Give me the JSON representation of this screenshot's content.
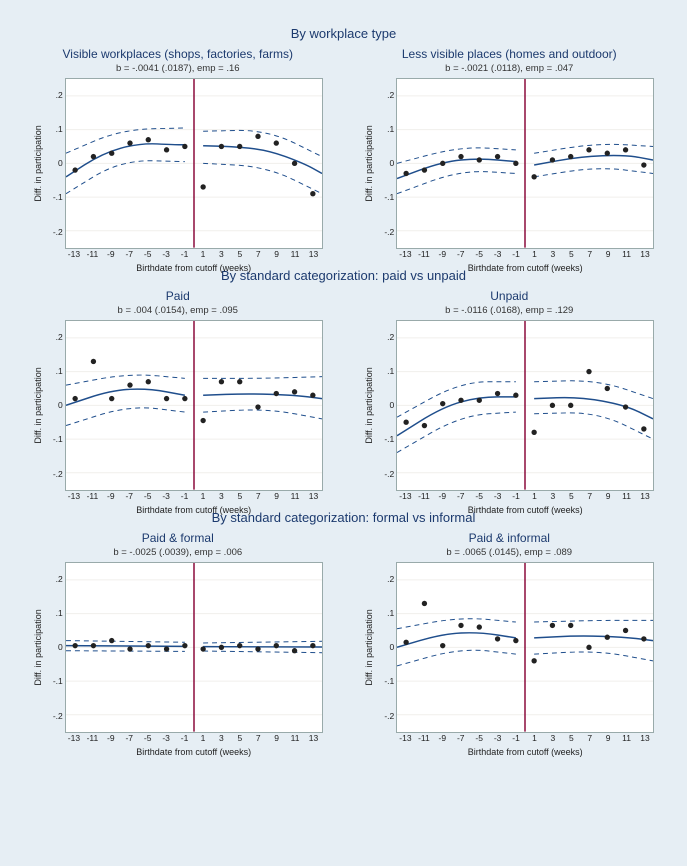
{
  "bg": "#e6eef4",
  "colors": {
    "line": "#1f4e8c",
    "cutoff": "#8b0a3b",
    "grid": "#f1efec",
    "bg_panel": "#ffffff",
    "border": "#99aaaa"
  },
  "xaxis": {
    "label": "Birthdate from cutoff (weeks)",
    "ticks": [
      -13,
      -11,
      -9,
      -7,
      -5,
      -3,
      -1,
      1,
      3,
      5,
      7,
      9,
      11,
      13
    ],
    "min": -14,
    "max": 14,
    "cutoff": 0
  },
  "yaxis": {
    "label_main": "Diff. in participation",
    "ticks": [
      -0.2,
      -0.1,
      0,
      0.1,
      0.2
    ],
    "min": -0.25,
    "max": 0.25
  },
  "point_radius": 2.7,
  "sections": [
    {
      "title": "By workplace type",
      "panels": [
        {
          "id": "visible",
          "title": "Visible workplaces (shops, factories, farms)",
          "sub": "b = -.0041 (.0187), emp = .16",
          "ylabel": "Diff. in participation",
          "points": [
            [
              -13,
              -0.02
            ],
            [
              -11,
              0.02
            ],
            [
              -9,
              0.03
            ],
            [
              -7,
              0.06
            ],
            [
              -5,
              0.07
            ],
            [
              -3,
              0.04
            ],
            [
              -1,
              0.05
            ],
            [
              1,
              -0.07
            ],
            [
              3,
              0.05
            ],
            [
              5,
              0.05
            ],
            [
              7,
              0.08
            ],
            [
              9,
              0.06
            ],
            [
              11,
              0.0
            ],
            [
              13,
              -0.09
            ]
          ],
          "fitL": [
            [
              -14,
              -0.04
            ],
            [
              -10,
              0.03
            ],
            [
              -6,
              0.06
            ],
            [
              -2,
              0.055
            ],
            [
              -1,
              0.055
            ]
          ],
          "fitR": [
            [
              1,
              0.052
            ],
            [
              4,
              0.05
            ],
            [
              8,
              0.04
            ],
            [
              12,
              0.0
            ],
            [
              14,
              -0.03
            ]
          ],
          "ciL_up": [
            [
              -14,
              0.03
            ],
            [
              -8,
              0.1
            ],
            [
              -1,
              0.105
            ]
          ],
          "ciL_lo": [
            [
              -14,
              -0.09
            ],
            [
              -8,
              0.01
            ],
            [
              -1,
              0.005
            ]
          ],
          "ciR_up": [
            [
              1,
              0.095
            ],
            [
              8,
              0.1
            ],
            [
              14,
              0.02
            ]
          ],
          "ciR_lo": [
            [
              1,
              0.0
            ],
            [
              8,
              -0.01
            ],
            [
              14,
              -0.09
            ]
          ]
        },
        {
          "id": "lessvis",
          "title": "Less visible places (homes and outdoor)",
          "sub": "b = -.0021 (.0118), emp = .047",
          "ylabel": "Diff. in participation",
          "points": [
            [
              -13,
              -0.03
            ],
            [
              -11,
              -0.02
            ],
            [
              -9,
              0.0
            ],
            [
              -7,
              0.02
            ],
            [
              -5,
              0.01
            ],
            [
              -3,
              0.02
            ],
            [
              -1,
              0.0
            ],
            [
              1,
              -0.04
            ],
            [
              3,
              0.01
            ],
            [
              5,
              0.02
            ],
            [
              7,
              0.04
            ],
            [
              9,
              0.03
            ],
            [
              11,
              0.04
            ],
            [
              13,
              -0.005
            ]
          ],
          "fitL": [
            [
              -14,
              -0.045
            ],
            [
              -9,
              0.005
            ],
            [
              -5,
              0.015
            ],
            [
              -1,
              0.005
            ]
          ],
          "fitR": [
            [
              1,
              -0.005
            ],
            [
              6,
              0.02
            ],
            [
              11,
              0.025
            ],
            [
              14,
              0.01
            ]
          ],
          "ciL_up": [
            [
              -14,
              0.0
            ],
            [
              -7,
              0.05
            ],
            [
              -1,
              0.04
            ]
          ],
          "ciL_lo": [
            [
              -14,
              -0.09
            ],
            [
              -7,
              -0.02
            ],
            [
              -1,
              -0.03
            ]
          ],
          "ciR_up": [
            [
              1,
              0.03
            ],
            [
              8,
              0.06
            ],
            [
              14,
              0.05
            ]
          ],
          "ciR_lo": [
            [
              1,
              -0.04
            ],
            [
              8,
              -0.01
            ],
            [
              14,
              -0.03
            ]
          ]
        }
      ]
    },
    {
      "title": "By standard categorization: paid vs unpaid",
      "panels": [
        {
          "id": "paid",
          "title": "Paid",
          "sub": "b = .004 (.0154), emp = .095",
          "ylabel": "Diff. in participation",
          "points": [
            [
              -13,
              0.02
            ],
            [
              -11,
              0.13
            ],
            [
              -9,
              0.02
            ],
            [
              -7,
              0.06
            ],
            [
              -5,
              0.07
            ],
            [
              -3,
              0.02
            ],
            [
              -1,
              0.02
            ],
            [
              1,
              -0.045
            ],
            [
              3,
              0.07
            ],
            [
              5,
              0.07
            ],
            [
              7,
              -0.005
            ],
            [
              9,
              0.035
            ],
            [
              11,
              0.04
            ],
            [
              13,
              0.03
            ]
          ],
          "fitL": [
            [
              -14,
              0.0
            ],
            [
              -9,
              0.045
            ],
            [
              -5,
              0.05
            ],
            [
              -1,
              0.03
            ]
          ],
          "fitR": [
            [
              1,
              0.03
            ],
            [
              6,
              0.035
            ],
            [
              11,
              0.03
            ],
            [
              14,
              0.02
            ]
          ],
          "ciL_up": [
            [
              -14,
              0.06
            ],
            [
              -7,
              0.095
            ],
            [
              -1,
              0.08
            ]
          ],
          "ciL_lo": [
            [
              -14,
              -0.06
            ],
            [
              -7,
              0.0
            ],
            [
              -1,
              -0.02
            ]
          ],
          "ciR_up": [
            [
              1,
              0.08
            ],
            [
              8,
              0.08
            ],
            [
              14,
              0.085
            ]
          ],
          "ciR_lo": [
            [
              1,
              -0.02
            ],
            [
              8,
              -0.01
            ],
            [
              14,
              -0.04
            ]
          ]
        },
        {
          "id": "unpaid",
          "title": "Unpaid",
          "sub": "b = -.0116 (.0168), emp = .129",
          "ylabel": "Diff. in participation",
          "points": [
            [
              -13,
              -0.05
            ],
            [
              -11,
              -0.06
            ],
            [
              -9,
              0.005
            ],
            [
              -7,
              0.015
            ],
            [
              -5,
              0.015
            ],
            [
              -3,
              0.035
            ],
            [
              -1,
              0.03
            ],
            [
              1,
              -0.08
            ],
            [
              3,
              0.0
            ],
            [
              5,
              0.0
            ],
            [
              7,
              0.1
            ],
            [
              9,
              0.05
            ],
            [
              11,
              -0.005
            ],
            [
              13,
              -0.07
            ]
          ],
          "fitL": [
            [
              -14,
              -0.09
            ],
            [
              -9,
              -0.005
            ],
            [
              -5,
              0.025
            ],
            [
              -1,
              0.025
            ]
          ],
          "fitR": [
            [
              1,
              0.02
            ],
            [
              6,
              0.025
            ],
            [
              11,
              0.0
            ],
            [
              14,
              -0.04
            ]
          ],
          "ciL_up": [
            [
              -14,
              -0.035
            ],
            [
              -7,
              0.07
            ],
            [
              -1,
              0.07
            ]
          ],
          "ciL_lo": [
            [
              -14,
              -0.14
            ],
            [
              -7,
              -0.03
            ],
            [
              -1,
              -0.02
            ]
          ],
          "ciR_up": [
            [
              1,
              0.07
            ],
            [
              8,
              0.075
            ],
            [
              14,
              0.02
            ]
          ],
          "ciR_lo": [
            [
              1,
              -0.025
            ],
            [
              8,
              -0.02
            ],
            [
              14,
              -0.1
            ]
          ]
        }
      ]
    },
    {
      "title": "By standard categorization: formal vs informal",
      "panels": [
        {
          "id": "formal",
          "title": "Paid & formal",
          "sub": "b = -.0025 (.0039), emp = .006",
          "ylabel": "Diff. in participation",
          "points": [
            [
              -13,
              0.005
            ],
            [
              -11,
              0.005
            ],
            [
              -9,
              0.02
            ],
            [
              -7,
              -0.005
            ],
            [
              -5,
              0.005
            ],
            [
              -3,
              -0.005
            ],
            [
              -1,
              0.005
            ],
            [
              1,
              -0.005
            ],
            [
              3,
              0.0
            ],
            [
              5,
              0.005
            ],
            [
              7,
              -0.005
            ],
            [
              9,
              0.005
            ],
            [
              11,
              -0.01
            ],
            [
              13,
              0.005
            ]
          ],
          "fitL": [
            [
              -14,
              0.005
            ],
            [
              -1,
              0.003
            ]
          ],
          "fitR": [
            [
              1,
              0.002
            ],
            [
              14,
              0.001
            ]
          ],
          "ciL_up": [
            [
              -14,
              0.02
            ],
            [
              -1,
              0.015
            ]
          ],
          "ciL_lo": [
            [
              -14,
              -0.01
            ],
            [
              -1,
              -0.012
            ]
          ],
          "ciR_up": [
            [
              1,
              0.013
            ],
            [
              14,
              0.018
            ]
          ],
          "ciR_lo": [
            [
              1,
              -0.011
            ],
            [
              14,
              -0.016
            ]
          ]
        },
        {
          "id": "informal",
          "title": "Paid & informal",
          "sub": "b = .0065 (.0145), emp = .089",
          "ylabel": "Diff. in participation",
          "points": [
            [
              -13,
              0.015
            ],
            [
              -11,
              0.13
            ],
            [
              -9,
              0.005
            ],
            [
              -7,
              0.065
            ],
            [
              -5,
              0.06
            ],
            [
              -3,
              0.025
            ],
            [
              -1,
              0.02
            ],
            [
              1,
              -0.04
            ],
            [
              3,
              0.065
            ],
            [
              5,
              0.065
            ],
            [
              7,
              0.0
            ],
            [
              9,
              0.03
            ],
            [
              11,
              0.05
            ],
            [
              13,
              0.025
            ]
          ],
          "fitL": [
            [
              -14,
              0.0
            ],
            [
              -9,
              0.04
            ],
            [
              -5,
              0.045
            ],
            [
              -1,
              0.028
            ]
          ],
          "fitR": [
            [
              1,
              0.028
            ],
            [
              6,
              0.035
            ],
            [
              11,
              0.03
            ],
            [
              14,
              0.02
            ]
          ],
          "ciL_up": [
            [
              -14,
              0.055
            ],
            [
              -7,
              0.09
            ],
            [
              -1,
              0.075
            ]
          ],
          "ciL_lo": [
            [
              -14,
              -0.055
            ],
            [
              -7,
              -0.002
            ],
            [
              -1,
              -0.02
            ]
          ],
          "ciR_up": [
            [
              1,
              0.075
            ],
            [
              8,
              0.08
            ],
            [
              14,
              0.08
            ]
          ],
          "ciR_lo": [
            [
              1,
              -0.02
            ],
            [
              8,
              -0.01
            ],
            [
              14,
              -0.04
            ]
          ]
        }
      ]
    }
  ]
}
